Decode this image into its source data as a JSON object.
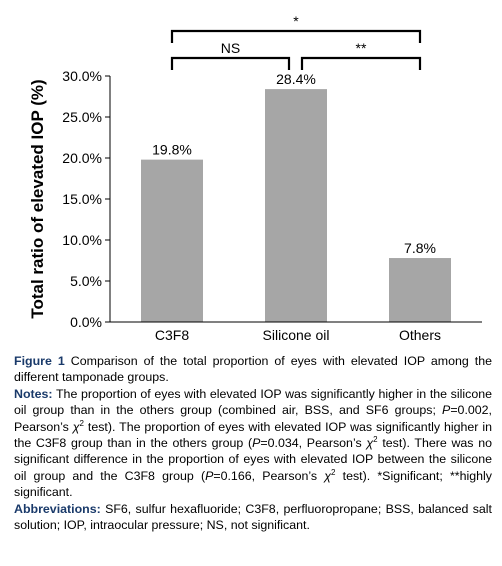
{
  "chart_data": {
    "type": "bar",
    "ylabel": "Total ratio of elevated IOP (%)",
    "xlabel": "",
    "categories": [
      "C3F8",
      "Silicone oil",
      "Others"
    ],
    "values": [
      19.8,
      28.4,
      7.8
    ],
    "value_labels": [
      "19.8%",
      "28.4%",
      "7.8%"
    ],
    "ylim": [
      0,
      30
    ],
    "yticks": [
      0,
      5,
      10,
      15,
      20,
      25,
      30
    ],
    "ytick_labels": [
      "0.0%",
      "5.0%",
      "10.0%",
      "15.0%",
      "20.0%",
      "25.0%",
      "30.0%"
    ],
    "bar_color": "#a6a6a6",
    "grid": false,
    "brackets": [
      {
        "from": "C3F8",
        "to": "Others",
        "label": "*"
      },
      {
        "from": "C3F8",
        "to": "Silicone oil",
        "label": "NS"
      },
      {
        "from": "Silicone oil",
        "to": "Others",
        "label": "**"
      }
    ]
  },
  "caption": {
    "figure_label": "Figure 1",
    "figure_text": "Comparison of the total proportion of eyes with elevated IOP among the different tamponade groups.",
    "notes_label": "Notes:",
    "notes_1": "The proportion of eyes with elevated IOP was significantly higher in the silicone oil group than in the others group (combined air, BSS, and SF6 groups;",
    "notes_p1": "P",
    "notes_2": "=0.002, Pearson’s",
    "notes_3": "test). The proportion of eyes with elevated IOP was significantly higher in the C3F8 group than in the others group (",
    "notes_p2": "P",
    "notes_4": "=0.034, Pearson’s",
    "notes_5": "test). There was no significant difference in the proportion of eyes with elevated IOP between the silicone oil group and the C3F8 group (",
    "notes_p3": "P",
    "notes_6": "=0.166, Pearson’s",
    "notes_7": "test). *Significant; **highly significant.",
    "chi": "χ",
    "two": "2",
    "abbrev_label": "Abbreviations:",
    "abbrev_text": "SF6, sulfur hexafluoride; C3F8, perfluoropropane; BSS, balanced salt solution; IOP, intraocular pressure; NS, not significant."
  }
}
